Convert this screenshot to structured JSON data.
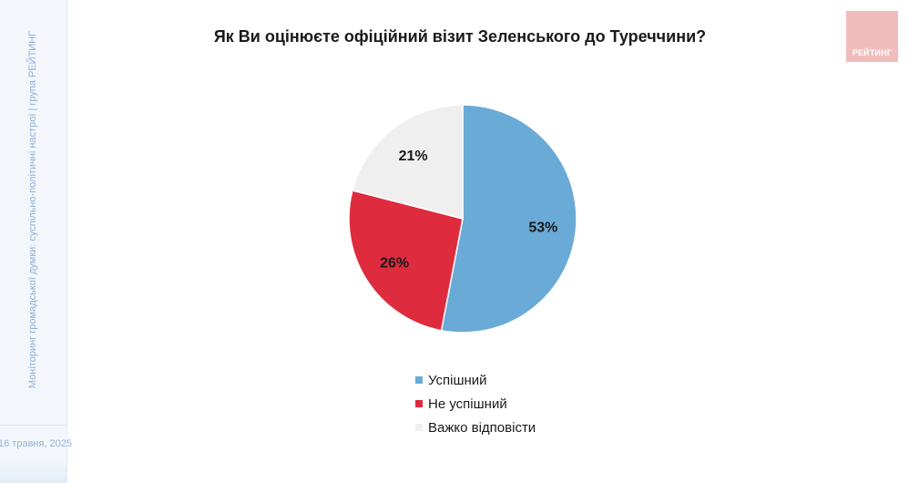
{
  "sidebar": {
    "caption": "Моніторинг громадської думки: суспільно-політичні настрої | група РЕЙТИНГ",
    "date": "16 травня, 2025"
  },
  "logo": {
    "text": "РЕЙТИНГ"
  },
  "chart_data": {
    "type": "pie",
    "title": "Як Ви оцінюєте офіційний візит Зеленського до Туреччини?",
    "categories": [
      "Успішний",
      "Не успішний",
      "Важко відповісти"
    ],
    "values": [
      53,
      26,
      21
    ],
    "value_labels": [
      "53%",
      "26%",
      "21%"
    ],
    "colors": [
      "#6aaad6",
      "#de2b3e",
      "#efefef"
    ],
    "start": "12 o'clock, clockwise",
    "legend_position": "bottom"
  }
}
